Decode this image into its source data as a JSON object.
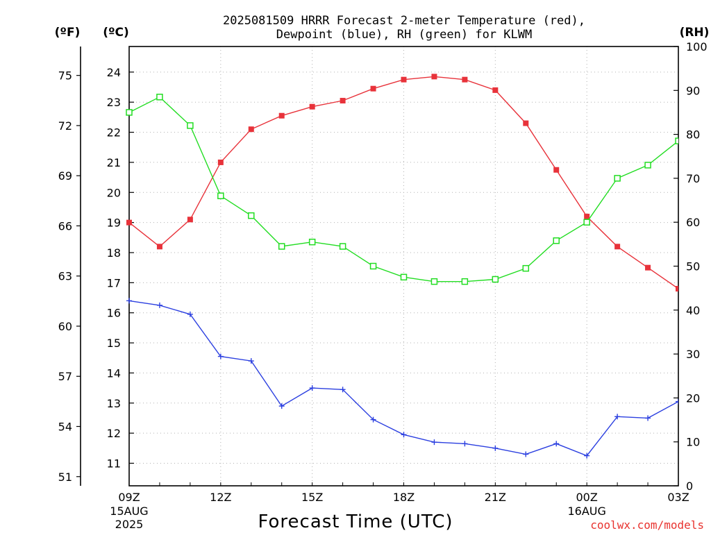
{
  "title_line1": "2025081509 HRRR Forecast 2-meter Temperature (red),",
  "title_line2": "Dewpoint (blue), RH (green) for KLWM",
  "units": {
    "f": "(ºF)",
    "c": "(ºC)",
    "rh": "(RH)"
  },
  "xlabel": "Forecast Time (UTC)",
  "credit": "coolwx.com/models",
  "colors": {
    "temperature": "#e8323a",
    "dewpoint": "#2b3fe0",
    "rh": "#22dd22"
  },
  "chart_data": {
    "type": "line",
    "x": [
      "09Z",
      "10Z",
      "11Z",
      "12Z",
      "13Z",
      "14Z",
      "15Z",
      "16Z",
      "17Z",
      "18Z",
      "19Z",
      "20Z",
      "21Z",
      "22Z",
      "23Z",
      "00Z",
      "01Z",
      "02Z",
      "03Z"
    ],
    "x_tick_labels": [
      {
        "hour": "09Z",
        "date": "15AUG",
        "year": "2025"
      },
      {
        "hour": "12Z",
        "date": "",
        "year": ""
      },
      {
        "hour": "15Z",
        "date": "",
        "year": ""
      },
      {
        "hour": "18Z",
        "date": "",
        "year": ""
      },
      {
        "hour": "21Z",
        "date": "",
        "year": ""
      },
      {
        "hour": "00Z",
        "date": "16AUG",
        "year": ""
      },
      {
        "hour": "03Z",
        "date": "",
        "year": ""
      }
    ],
    "y_left_c": {
      "ticks": [
        11,
        12,
        13,
        14,
        15,
        16,
        17,
        18,
        19,
        20,
        21,
        22,
        23,
        24
      ],
      "range": [
        10.25,
        24.85
      ]
    },
    "y_left_f": {
      "ticks": [
        51,
        54,
        57,
        60,
        63,
        66,
        69,
        72,
        75
      ]
    },
    "y_right_rh": {
      "ticks": [
        0,
        10,
        20,
        30,
        40,
        50,
        60,
        70,
        80,
        90,
        100
      ],
      "range": [
        0,
        100
      ]
    },
    "grid": true,
    "series": [
      {
        "name": "Temperature",
        "axis": "C",
        "marker": "filled-square",
        "values": [
          19.0,
          18.2,
          19.1,
          21.0,
          22.1,
          22.55,
          22.85,
          23.05,
          23.45,
          23.75,
          23.85,
          23.75,
          23.4,
          22.3,
          20.75,
          19.2,
          18.2,
          17.5,
          16.8
        ]
      },
      {
        "name": "Dewpoint",
        "axis": "C",
        "marker": "plus",
        "values": [
          16.4,
          16.25,
          15.95,
          14.55,
          14.4,
          12.9,
          13.5,
          13.45,
          12.45,
          11.95,
          11.7,
          11.65,
          11.5,
          11.3,
          11.65,
          11.25,
          12.55,
          12.5,
          13.05
        ]
      },
      {
        "name": "RH",
        "axis": "RH",
        "marker": "open-square",
        "values": [
          85.0,
          88.5,
          82.0,
          66.0,
          61.5,
          54.5,
          55.5,
          54.5,
          50.0,
          47.5,
          46.5,
          46.5,
          47.0,
          49.5,
          55.8,
          60.0,
          70.0,
          73.0,
          78.5
        ]
      }
    ]
  }
}
